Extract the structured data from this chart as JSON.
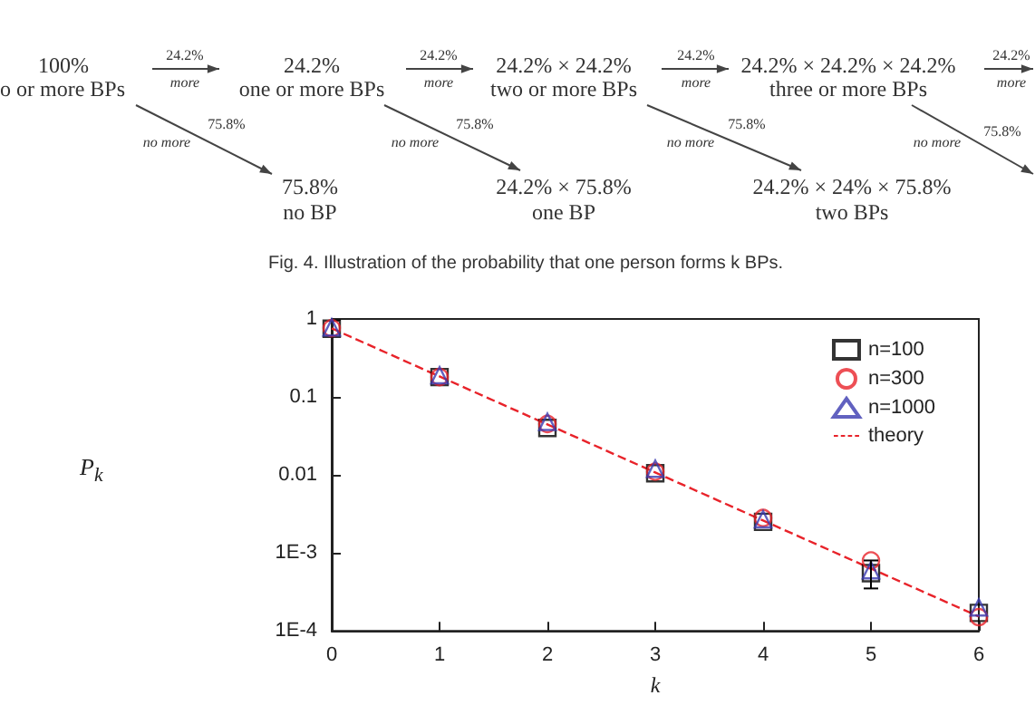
{
  "chart_data": [
    {
      "type": "other",
      "annotations": [
        "100%",
        "o or more BPs",
        "24.2%",
        "one or more BPs",
        "24.2% × 24.2%",
        "two or more BPs",
        "24.2% × 24.2% × 24.2%",
        "three or more BPs",
        "24.2%",
        "more",
        "24.2%",
        "more",
        "24.2%",
        "more",
        "24.2%",
        "more",
        "75.8%",
        "no more",
        "75.8%",
        "no more",
        "75.8%",
        "no more",
        "75.8%",
        "no more",
        "75.8%",
        "no BP",
        "24.2% × 75.8%",
        "one BP",
        "24.2% × 24% × 75.8%",
        "two BPs",
        "Fig. 4.  Illustration of the probability that one person forms k BPs."
      ]
    },
    {
      "type": "scatter",
      "xlabel": "k",
      "ylabel": "P$_{k}$",
      "log": "y",
      "xlim": [
        0,
        6
      ],
      "xticks": [
        0,
        1,
        2,
        3,
        4,
        5,
        6
      ],
      "ylim": [
        0.0001,
        1
      ],
      "yticks": [
        {
          "value": 0.0001,
          "label": "1E-4"
        },
        {
          "value": 0.001,
          "label": "1E-3"
        },
        0.01,
        0.1,
        1
      ],
      "x": [
        0,
        1,
        2,
        3,
        4,
        5,
        6
      ],
      "legend": "top right",
      "grid": false,
      "series": [
        {
          "name": "n=100",
          "color": "#000000",
          "marker": "square",
          "values": [
            0.75,
            0.18,
            0.04,
            0.0105,
            0.0025,
            0.00055,
            0.00017
          ],
          "errors": [
            null,
            null,
            null,
            null,
            null,
            [
              0.00035,
              0.0008
            ],
            null
          ]
        },
        {
          "name": "n=300",
          "color": "#e8232a",
          "marker": "circle",
          "values": [
            0.76,
            0.18,
            0.045,
            0.011,
            0.0028,
            0.0008,
            0.00015
          ]
        },
        {
          "name": "n=1000",
          "color": "#3a3ab0",
          "marker": "triangle",
          "values": [
            0.78,
            0.19,
            0.048,
            0.012,
            0.0027,
            0.0006,
            0.0002
          ]
        },
        {
          "name": "theory",
          "type": "line",
          "color": "#e8232a",
          "marker": "none",
          "line_style": "dashed",
          "x": [
            0,
            1,
            2,
            3,
            4,
            5,
            6
          ],
          "values": [
            0.758,
            0.183,
            0.0444,
            0.01075,
            0.0026,
            0.00063,
            0.000153
          ]
        }
      ]
    }
  ]
}
